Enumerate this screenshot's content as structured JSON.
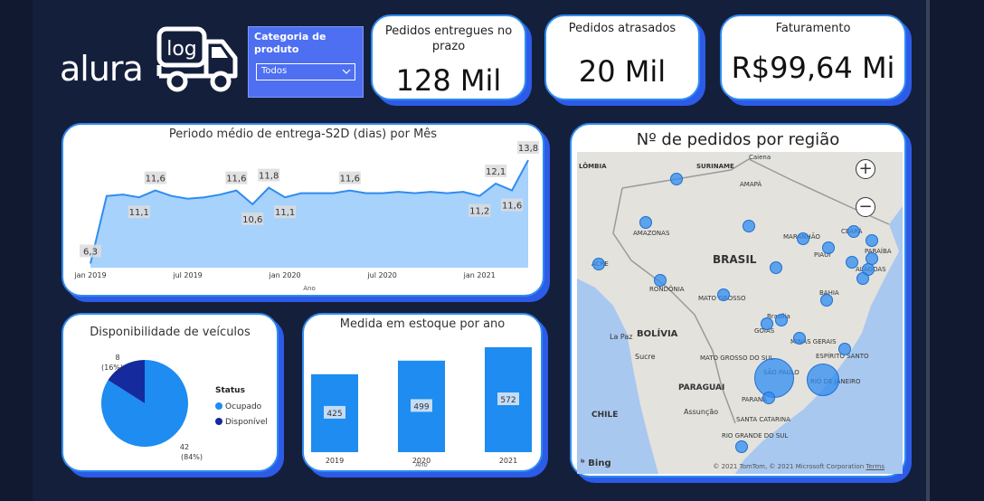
{
  "logo": {
    "brand": "alura",
    "badge": "log"
  },
  "slicer": {
    "label": "Categoria de produto",
    "selected": "Todos"
  },
  "kpis": [
    {
      "title": "Pedidos entregues no prazo",
      "value": "128 Mil"
    },
    {
      "title": "Pedidos atrasados",
      "value": "20 Mil"
    },
    {
      "title": "Faturamento",
      "value": "R$99,64 Mi"
    }
  ],
  "line_panel": {
    "title": "Periodo médio de entrega-S2D (dias) por Mês",
    "xlabel": "Ano",
    "x_ticks": [
      "jan 2019",
      "jul 2019",
      "jan 2020",
      "jul 2020",
      "jan 2021"
    ]
  },
  "pie_panel": {
    "title": "Disponibilidade de veículos",
    "legend_title": "Status",
    "legend": [
      {
        "label": "Ocupado",
        "color": "#1e8cf0"
      },
      {
        "label": "Disponível",
        "color": "#152a9c"
      }
    ],
    "slice_labels": {
      "ocupado_value": "42",
      "ocupado_pct": "(84%)",
      "disponivel_value": "8",
      "disponivel_pct": "(16%)"
    }
  },
  "bar_panel": {
    "title": "Medida em estoque por ano",
    "xlabel": "Ano"
  },
  "map_panel": {
    "title": "Nº de pedidos por região",
    "zoom_in": "+",
    "zoom_out": "−",
    "bing_label": "Bing",
    "copyright": "© 2021 TomTom, © 2021 Microsoft Corporation",
    "terms": "Terms",
    "labels": [
      "BRASIL",
      "BOLÍVIA",
      "PARAGUAI",
      "CHILE",
      "SURINAME",
      "AMAZONAS",
      "RONDÔNIA",
      "MATO GROSSO",
      "BAHIA",
      "PIAUÍ",
      "MARANHÃO",
      "CEARÁ",
      "PARAÍBA",
      "ALAGOAS",
      "GOIÁS",
      "Brasília",
      "MINAS GERAIS",
      "ESPÍRITO SANTO",
      "SÃO PAULO",
      "RIO DE JANEIRO",
      "PARANÁ",
      "SANTA CATARINA",
      "RIO GRANDE DO SUL",
      "MATO GROSSO DO SUL",
      "La Paz",
      "Sucre",
      "Assunção",
      "Caiena",
      "AMAPÁ",
      "LÔMBIA",
      "ACRE"
    ]
  },
  "chart_data": [
    {
      "type": "area",
      "title": "Periodo médio de entrega-S2D (dias) por Mês",
      "xlabel": "Ano",
      "ylabel": "",
      "x": [
        "2019-01",
        "2019-02",
        "2019-03",
        "2019-04",
        "2019-05",
        "2019-06",
        "2019-07",
        "2019-08",
        "2019-09",
        "2019-10",
        "2019-11",
        "2019-12",
        "2020-01",
        "2020-02",
        "2020-03",
        "2020-04",
        "2020-05",
        "2020-06",
        "2020-07",
        "2020-08",
        "2020-09",
        "2020-10",
        "2020-11",
        "2020-12",
        "2021-01",
        "2021-02",
        "2021-03",
        "2021-04"
      ],
      "values": [
        6.3,
        11.2,
        11.3,
        11.1,
        11.6,
        11.2,
        11.0,
        11.1,
        11.3,
        11.6,
        10.6,
        11.8,
        11.1,
        11.4,
        11.4,
        11.4,
        11.6,
        11.4,
        11.4,
        11.5,
        11.4,
        11.5,
        11.4,
        11.5,
        11.2,
        12.1,
        11.6,
        13.8
      ],
      "data_labels": [
        {
          "index": 0,
          "label": "6,3"
        },
        {
          "index": 4,
          "label": "11,6"
        },
        {
          "index": 3,
          "label": "11,1"
        },
        {
          "index": 9,
          "label": "11,6"
        },
        {
          "index": 10,
          "label": "10,6"
        },
        {
          "index": 11,
          "label": "11,8"
        },
        {
          "index": 12,
          "label": "11,1"
        },
        {
          "index": 16,
          "label": "11,6"
        },
        {
          "index": 24,
          "label": "11,2"
        },
        {
          "index": 25,
          "label": "12,1"
        },
        {
          "index": 26,
          "label": "11,6"
        },
        {
          "index": 27,
          "label": "13,8"
        }
      ],
      "ylim": [
        6,
        14
      ],
      "color": "#2f8cf0"
    },
    {
      "type": "pie",
      "title": "Disponibilidade de veículos",
      "categories": [
        "Ocupado",
        "Disponível"
      ],
      "values": [
        42,
        8
      ],
      "colors": [
        "#1e8cf0",
        "#152a9c"
      ],
      "legend": "right"
    },
    {
      "type": "bar",
      "title": "Medida em estoque por ano",
      "xlabel": "Ano",
      "categories": [
        "2019",
        "2020",
        "2021"
      ],
      "values": [
        425,
        499,
        572
      ],
      "color": "#1e8cf0"
    }
  ]
}
